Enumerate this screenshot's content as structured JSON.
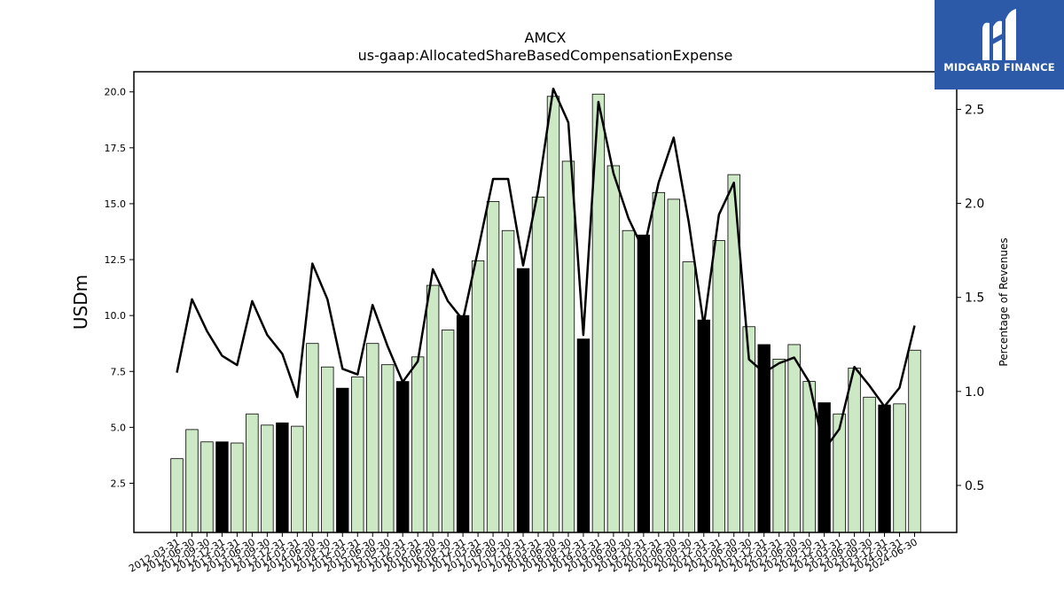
{
  "logo": {
    "text": "MIDGARD FINANCE"
  },
  "chart_data": {
    "type": "bar",
    "title": "AMCX",
    "subtitle": "us-gaap:AllocatedShareBasedCompensationExpense",
    "ylabel": "USDm",
    "y2label": "Percentage of Revenues",
    "ylim": [
      0.3,
      20.9
    ],
    "y2lim": [
      0.25,
      2.7
    ],
    "yticks": [
      "2.5",
      "5.0",
      "7.5",
      "10.0",
      "12.5",
      "15.0",
      "17.5",
      "20.0"
    ],
    "y2ticks": [
      "0.5",
      "1.0",
      "1.5",
      "2.0",
      "2.5"
    ],
    "categories": [
      "2012-03-31",
      "2012-06-30",
      "2012-09-30",
      "2012-12-31",
      "2013-03-31",
      "2013-06-30",
      "2013-09-30",
      "2013-12-31",
      "2014-03-31",
      "2014-06-30",
      "2014-09-30",
      "2014-12-31",
      "2015-03-31",
      "2015-06-30",
      "2015-09-30",
      "2015-12-31",
      "2016-03-31",
      "2016-06-30",
      "2016-09-30",
      "2016-12-31",
      "2017-03-31",
      "2017-06-30",
      "2017-09-30",
      "2017-12-31",
      "2018-03-31",
      "2018-06-30",
      "2018-09-30",
      "2018-12-31",
      "2019-03-31",
      "2019-06-30",
      "2019-09-30",
      "2019-12-31",
      "2020-03-31",
      "2020-06-30",
      "2020-09-30",
      "2020-12-31",
      "2021-03-31",
      "2021-06-30",
      "2021-09-30",
      "2021-12-31",
      "2022-03-31",
      "2022-06-30",
      "2022-09-30",
      "2022-12-31",
      "2023-03-31",
      "2023-06-30",
      "2023-09-30",
      "2023-12-31",
      "2024-03-31",
      "2024-06-30"
    ],
    "xtick_labels": [
      "2012-03-31",
      "2012-06-30",
      "2012-09-30",
      "2012-12-31",
      "2013-03-31",
      "2013-06-30",
      "2013-09-30",
      "2013-12-31",
      "2014-03-31",
      "2014-06-30",
      "2014-09-30",
      "2014-12-31",
      "2015-03-31",
      "2015-06-30",
      "2015-09-30",
      "2015-12-31",
      "2016-03-31",
      "2016-06-30",
      "2016-09-30",
      "2016-12-31",
      "2017-03-31",
      "2017-06-30",
      "2017-09-30",
      "2017-12-31",
      "2018-03-31",
      "2018-06-30",
      "2018-09-30",
      "2018-12-31",
      "2019-03-31",
      "2019-06-30",
      "2019-09-30",
      "2019-12-31",
      "2020-03-31",
      "2020-06-30",
      "2020-09-30",
      "2020-12-31",
      "2021-03-31",
      "2021-06-30",
      "2021-09-30",
      "2021-12-31",
      "2022-03-31",
      "2022-06-30",
      "2022-09-30",
      "2022-12-31",
      "2023-03-31",
      "2023-06-30",
      "2023-09-30",
      "2023-12-31",
      "2024-03-31",
      "2024-06-30"
    ],
    "series": [
      {
        "axis": "left",
        "kind": "bar",
        "values": [
          3.6,
          4.9,
          4.35,
          4.35,
          4.3,
          5.6,
          5.1,
          5.2,
          5.05,
          8.75,
          7.7,
          6.75,
          7.25,
          8.75,
          7.8,
          7.05,
          8.15,
          11.35,
          9.35,
          10.0,
          12.45,
          15.1,
          13.8,
          12.1,
          15.3,
          19.8,
          16.9,
          8.95,
          19.9,
          16.7,
          13.8,
          13.6,
          15.5,
          15.2,
          12.4,
          9.8,
          13.35,
          16.3,
          9.5,
          8.7,
          8.05,
          8.7,
          7.05,
          6.1,
          5.6,
          7.65,
          6.35,
          6.0,
          6.05,
          8.45
        ]
      },
      {
        "axis": "right",
        "kind": "line",
        "values": [
          1.1,
          1.49,
          1.32,
          1.19,
          1.14,
          1.48,
          1.3,
          1.2,
          0.97,
          1.68,
          1.49,
          1.12,
          1.09,
          1.46,
          1.24,
          1.05,
          1.16,
          1.65,
          1.48,
          1.38,
          1.75,
          2.13,
          2.13,
          1.67,
          2.07,
          2.61,
          2.43,
          1.3,
          2.54,
          2.16,
          1.92,
          1.75,
          2.11,
          2.35,
          1.9,
          1.35,
          1.94,
          2.11,
          1.17,
          1.1,
          1.15,
          1.18,
          1.05,
          0.69,
          0.8,
          1.13,
          1.03,
          0.92,
          1.02,
          1.35
        ]
      }
    ],
    "colors": {
      "bar_fill": "#cde8c5",
      "bar_highlight": "#000000",
      "bar_edge": "#000000",
      "line": "#000000"
    },
    "highlight_categories": [
      "2012-12-31",
      "2013-12-31",
      "2014-12-31",
      "2015-12-31",
      "2016-12-31",
      "2017-12-31",
      "2018-12-31",
      "2019-12-31",
      "2020-12-31",
      "2021-12-31",
      "2022-12-31",
      "2023-12-31"
    ],
    "grid": false,
    "legend": "none"
  }
}
